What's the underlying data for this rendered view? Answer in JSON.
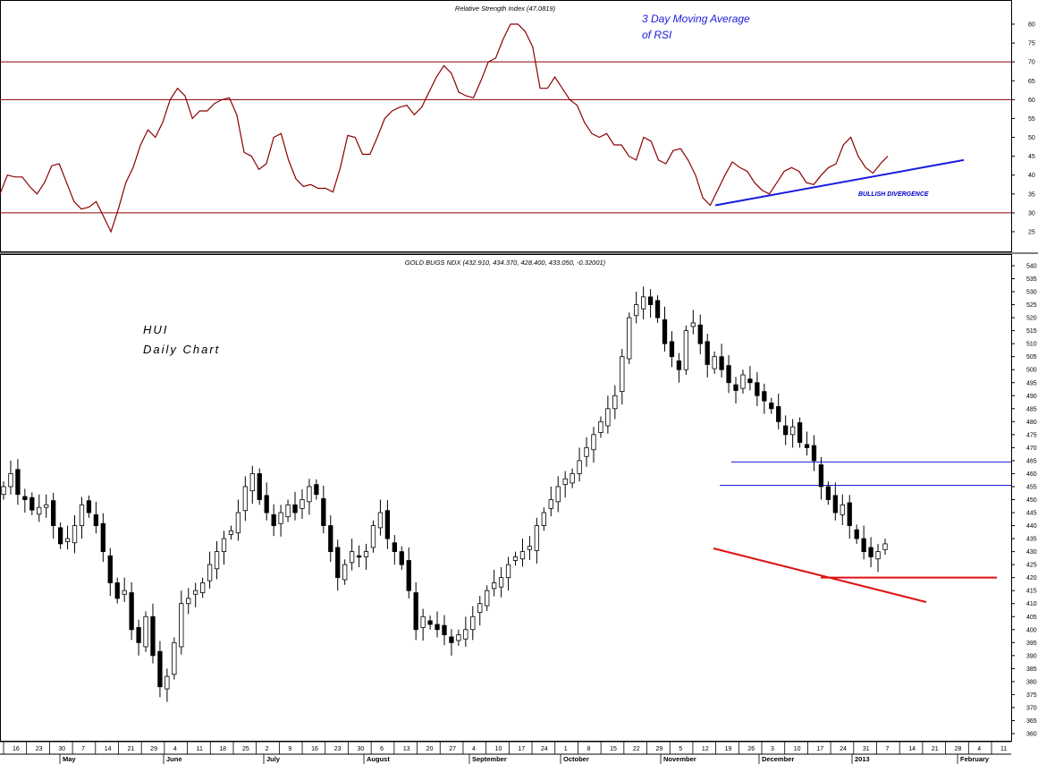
{
  "chart_data": [
    {
      "type": "line",
      "title": "Relative Strength Index (47.0819)",
      "ylim": [
        20,
        85
      ],
      "y_ticks": [
        25,
        30,
        35,
        40,
        45,
        50,
        55,
        60,
        65,
        70,
        75,
        80
      ],
      "reference_lines": [
        30,
        60,
        70
      ],
      "annotations": [
        "3 Day Moving Average",
        "of RSI",
        "BULLISH DIVERGENCE"
      ],
      "series": [
        {
          "values": [
            35,
            40,
            39.5,
            39.5,
            37,
            35,
            38,
            42.5,
            43,
            38,
            33,
            31,
            31.5,
            33,
            29,
            25,
            31,
            38,
            42,
            48,
            52,
            50,
            54,
            60,
            63,
            61,
            55,
            57,
            57,
            59,
            60,
            60.5,
            56,
            46,
            45,
            41.5,
            43,
            50,
            51,
            44,
            39,
            37,
            37.5,
            36.5,
            36.5,
            35.5,
            42,
            50.5,
            50,
            45.5,
            45.5,
            50,
            55,
            57,
            58,
            58.5,
            56,
            58,
            62,
            66,
            69,
            67,
            62,
            61,
            60.5,
            65,
            70,
            71,
            76,
            80,
            80,
            78,
            74,
            63,
            63,
            66,
            63,
            60,
            58.5,
            54,
            51,
            50,
            51,
            48,
            48,
            45,
            44,
            50,
            49,
            44,
            43,
            46.5,
            47,
            44,
            40,
            34,
            32,
            36,
            40,
            43.5,
            42,
            41,
            38,
            36,
            35,
            38,
            41,
            42,
            41,
            38,
            37.5,
            40,
            42,
            43,
            48,
            50,
            45,
            42,
            40.5,
            43,
            45
          ],
          "color": "#8b0000"
        },
        {
          "values": [
            32,
            44
          ],
          "color": "#1a1adc"
        }
      ]
    },
    {
      "type": "candlestick",
      "title": "GOLD BUGS NDX (432.910, 434.370, 428.400, 433.050, -0.32001)",
      "ylim": [
        356,
        543
      ],
      "y_ticks": [
        360,
        365,
        370,
        375,
        380,
        385,
        390,
        395,
        400,
        405,
        410,
        415,
        420,
        425,
        430,
        435,
        440,
        445,
        450,
        455,
        460,
        465,
        470,
        475,
        480,
        485,
        490,
        495,
        500,
        505,
        510,
        515,
        520,
        525,
        530,
        535,
        540
      ],
      "annotations": [
        "HUI",
        "Daily Chart"
      ],
      "x_tick_labels": [
        "16",
        "23",
        "30",
        "7",
        "14",
        "21",
        "29",
        "4",
        "11",
        "18",
        "25",
        "2",
        "9",
        "16",
        "23",
        "30",
        "6",
        "13",
        "20",
        "27",
        "4",
        "10",
        "17",
        "24",
        "1",
        "8",
        "15",
        "22",
        "29",
        "5",
        "12",
        "19",
        "26",
        "3",
        "10",
        "17",
        "24",
        "31",
        "7",
        "14",
        "21",
        "28",
        "4",
        "11"
      ],
      "months": [
        "May",
        "June",
        "July",
        "August",
        "September",
        "October",
        "November",
        "December",
        "2013",
        "February"
      ],
      "resistance_lines": [
        464.5,
        455.5
      ],
      "support_lines": [
        420
      ],
      "series": [
        {
          "closes": [
            455,
            460,
            452,
            450,
            446,
            447,
            448,
            440,
            433,
            435,
            440,
            448,
            445,
            440,
            430,
            418,
            412,
            415,
            400,
            395,
            405,
            390,
            378,
            382,
            395,
            410,
            412,
            415,
            418,
            425,
            430,
            435,
            438,
            445,
            455,
            460,
            450,
            445,
            440,
            445,
            448,
            445,
            450,
            455,
            452,
            440,
            430,
            420,
            425,
            430,
            428,
            430,
            440,
            445,
            435,
            430,
            425,
            415,
            400,
            405,
            402,
            400,
            398,
            395,
            398,
            400,
            405,
            410,
            415,
            418,
            420,
            425,
            428,
            430,
            432,
            440,
            445,
            450,
            455,
            458,
            460,
            465,
            470,
            475,
            480,
            485,
            490,
            505,
            520,
            525,
            528,
            525,
            520,
            510,
            505,
            500,
            515,
            518,
            510,
            502,
            505,
            500,
            495,
            492,
            498,
            495,
            490,
            488,
            485,
            480,
            475,
            478,
            472,
            470,
            465,
            455,
            450,
            445,
            448,
            440,
            435,
            430,
            428,
            430,
            433
          ],
          "color": "#000000"
        }
      ]
    }
  ]
}
